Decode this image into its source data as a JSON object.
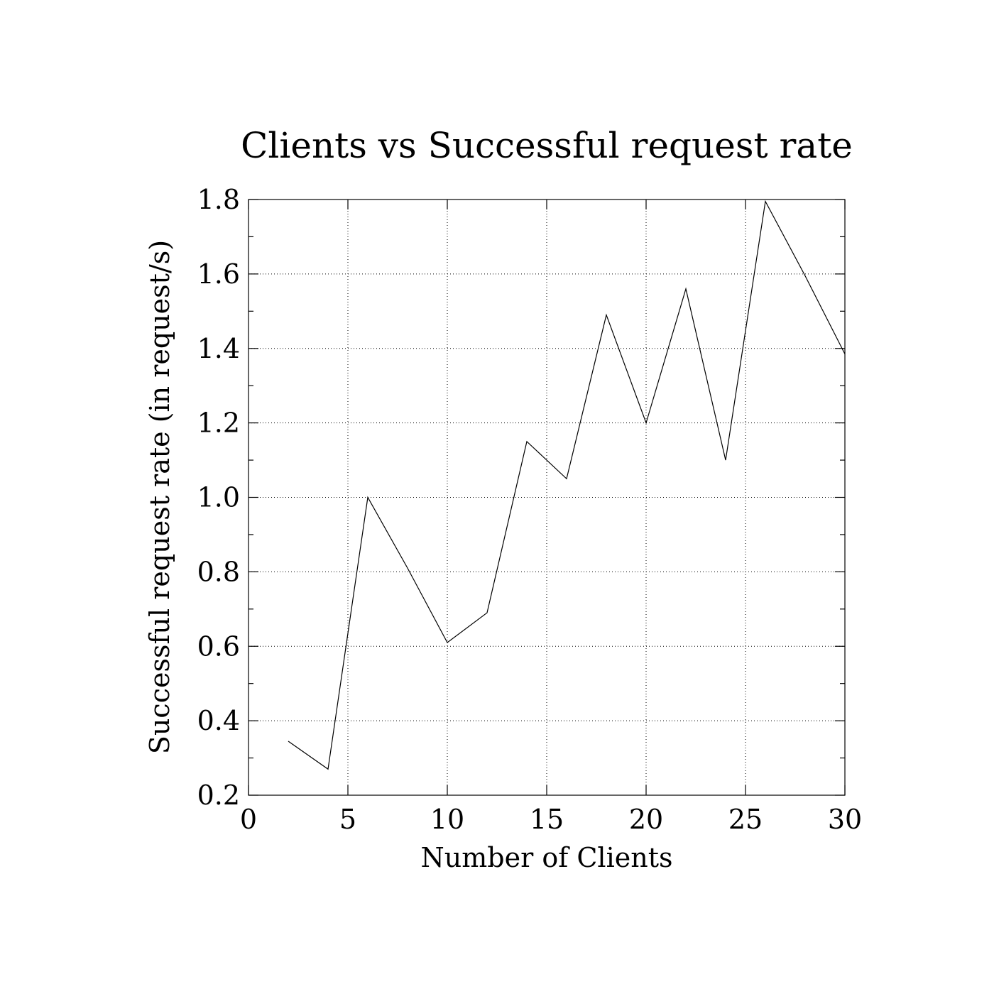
{
  "chart_data": {
    "type": "line",
    "title": "Clients vs Successful request rate",
    "xlabel": "Number of Clients",
    "ylabel": "Successful request rate (in request/s)",
    "xlim": [
      0,
      30
    ],
    "ylim": [
      0.2,
      1.8
    ],
    "x_ticks": [
      "0",
      "5",
      "10",
      "15",
      "20",
      "25",
      "30"
    ],
    "y_ticks": [
      "0.2",
      "0.4",
      "0.6",
      "0.8",
      "1.0",
      "1.2",
      "1.4",
      "1.6",
      "1.8"
    ],
    "grid": true,
    "x": [
      2,
      4,
      6,
      8,
      10,
      12,
      14,
      16,
      18,
      20,
      22,
      24,
      26,
      28,
      30
    ],
    "series": [
      {
        "values": [
          0.345,
          0.27,
          1.0,
          0.81,
          0.61,
          0.69,
          1.15,
          1.05,
          1.49,
          1.2,
          1.56,
          1.1,
          1.795,
          1.595,
          1.385
        ]
      }
    ]
  }
}
